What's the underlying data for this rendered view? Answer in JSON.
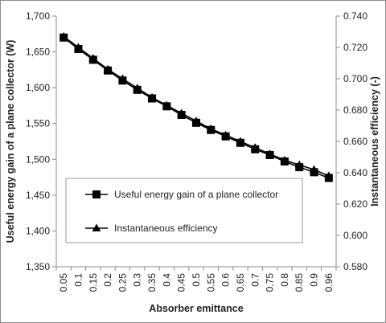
{
  "chart_data": {
    "type": "line",
    "x_categories": [
      "0.05",
      "0.1",
      "0.15",
      "0.2",
      "0.25",
      "0.3",
      "0.35",
      "0.4",
      "0.45",
      "0.5",
      "0.55",
      "0.6",
      "0.65",
      "0.7",
      "0.75",
      "0.8",
      "0.85",
      "0.9",
      "0.96"
    ],
    "xlabel": "Absorber emittance",
    "y_left": {
      "label": "Useful energy gain of a plane collector (W)",
      "ylim": [
        1350,
        1700
      ],
      "ticks": [
        "1,350",
        "1,400",
        "1,450",
        "1,500",
        "1,550",
        "1,600",
        "1,650",
        "1,700"
      ]
    },
    "y_right": {
      "label": "Instantaneous efficiency (-)",
      "ylim": [
        0.58,
        0.74
      ],
      "ticks": [
        "0.580",
        "0.600",
        "0.620",
        "0.640",
        "0.660",
        "0.680",
        "0.700",
        "0.720",
        "0.740"
      ]
    },
    "series": [
      {
        "name": "Useful energy gain of a plane collector",
        "axis": "left",
        "marker": "square",
        "values": [
          1670,
          1654,
          1639,
          1624,
          1610,
          1597,
          1585,
          1574,
          1562,
          1551,
          1541,
          1532,
          1523,
          1514,
          1506,
          1497,
          1489,
          1482,
          1474
        ]
      },
      {
        "name": "Instantaneous efficiency",
        "axis": "right",
        "marker": "triangle",
        "values": [
          0.727,
          0.72,
          0.713,
          0.706,
          0.7,
          0.694,
          0.688,
          0.683,
          0.678,
          0.673,
          0.668,
          0.664,
          0.66,
          0.656,
          0.652,
          0.648,
          0.645,
          0.642,
          0.638
        ]
      }
    ],
    "legend": {
      "placement": "inside-bottom-left"
    },
    "grid": false
  }
}
